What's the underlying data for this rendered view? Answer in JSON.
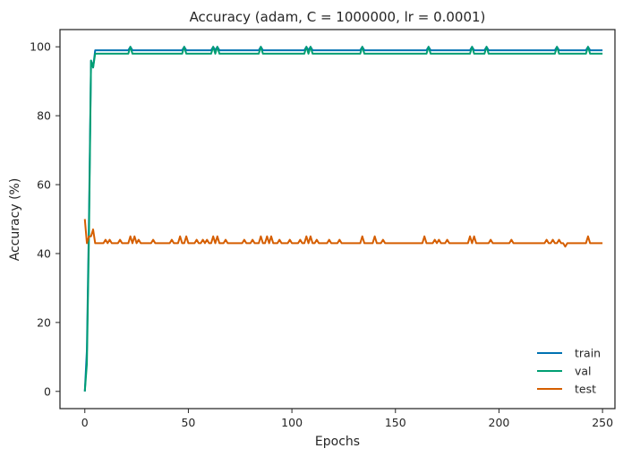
{
  "chart_data": {
    "type": "line",
    "title": "Accuracy (adam, C = 1000000, lr = 0.0001)",
    "xlabel": "Epochs",
    "ylabel": "Accuracy (%)",
    "xlim": [
      -12,
      256
    ],
    "ylim": [
      -5,
      105
    ],
    "xticks": [
      0,
      50,
      100,
      150,
      200,
      250
    ],
    "yticks": [
      0,
      20,
      40,
      60,
      80,
      100
    ],
    "grid": false,
    "legend_position": "lower right",
    "series": [
      {
        "name": "train",
        "color": "#0072B2",
        "base": 99,
        "points": [
          [
            0,
            0
          ],
          [
            1,
            12
          ],
          [
            2,
            50
          ],
          [
            3,
            96
          ],
          [
            4,
            94
          ],
          [
            5,
            99
          ],
          [
            250,
            99
          ]
        ],
        "spikes": [
          [
            22,
            100
          ],
          [
            48,
            100
          ],
          [
            62,
            100
          ],
          [
            64,
            100
          ],
          [
            85,
            100
          ],
          [
            107,
            100
          ],
          [
            109,
            100
          ],
          [
            134,
            100
          ],
          [
            166,
            100
          ],
          [
            187,
            100
          ],
          [
            194,
            100
          ],
          [
            228,
            100
          ],
          [
            243,
            100
          ]
        ]
      },
      {
        "name": "val",
        "color": "#009E73",
        "base": 98,
        "points": [
          [
            0,
            0
          ],
          [
            1,
            8
          ],
          [
            2,
            45
          ],
          [
            3,
            96
          ],
          [
            4,
            94
          ],
          [
            5,
            98
          ],
          [
            250,
            98
          ]
        ],
        "spikes": [
          [
            22,
            100
          ],
          [
            48,
            100
          ],
          [
            62,
            100
          ],
          [
            64,
            100
          ],
          [
            85,
            100
          ],
          [
            107,
            100
          ],
          [
            109,
            100
          ],
          [
            134,
            100
          ],
          [
            166,
            100
          ],
          [
            187,
            100
          ],
          [
            194,
            100
          ],
          [
            228,
            100
          ],
          [
            243,
            100
          ]
        ]
      },
      {
        "name": "test",
        "color": "#D55E00",
        "base": 43,
        "points": [
          [
            0,
            50
          ],
          [
            1,
            43
          ],
          [
            2,
            45
          ],
          [
            3,
            45
          ],
          [
            4,
            47
          ],
          [
            5,
            43
          ],
          [
            250,
            43
          ]
        ],
        "spikes": [
          [
            10,
            44
          ],
          [
            12,
            44
          ],
          [
            17,
            44
          ],
          [
            22,
            45
          ],
          [
            24,
            45
          ],
          [
            26,
            44
          ],
          [
            33,
            44
          ],
          [
            42,
            44
          ],
          [
            46,
            45
          ],
          [
            49,
            45
          ],
          [
            54,
            44
          ],
          [
            57,
            44
          ],
          [
            59,
            44
          ],
          [
            62,
            45
          ],
          [
            64,
            45
          ],
          [
            68,
            44
          ],
          [
            77,
            44
          ],
          [
            81,
            44
          ],
          [
            85,
            45
          ],
          [
            88,
            45
          ],
          [
            90,
            45
          ],
          [
            94,
            44
          ],
          [
            99,
            44
          ],
          [
            104,
            44
          ],
          [
            107,
            45
          ],
          [
            109,
            45
          ],
          [
            112,
            44
          ],
          [
            118,
            44
          ],
          [
            123,
            44
          ],
          [
            134,
            45
          ],
          [
            140,
            45
          ],
          [
            144,
            44
          ],
          [
            164,
            45
          ],
          [
            169,
            44
          ],
          [
            171,
            44
          ],
          [
            175,
            44
          ],
          [
            186,
            45
          ],
          [
            188,
            45
          ],
          [
            196,
            44
          ],
          [
            206,
            44
          ],
          [
            223,
            44
          ],
          [
            226,
            44
          ],
          [
            229,
            44
          ],
          [
            232,
            42
          ],
          [
            243,
            45
          ]
        ]
      }
    ]
  }
}
